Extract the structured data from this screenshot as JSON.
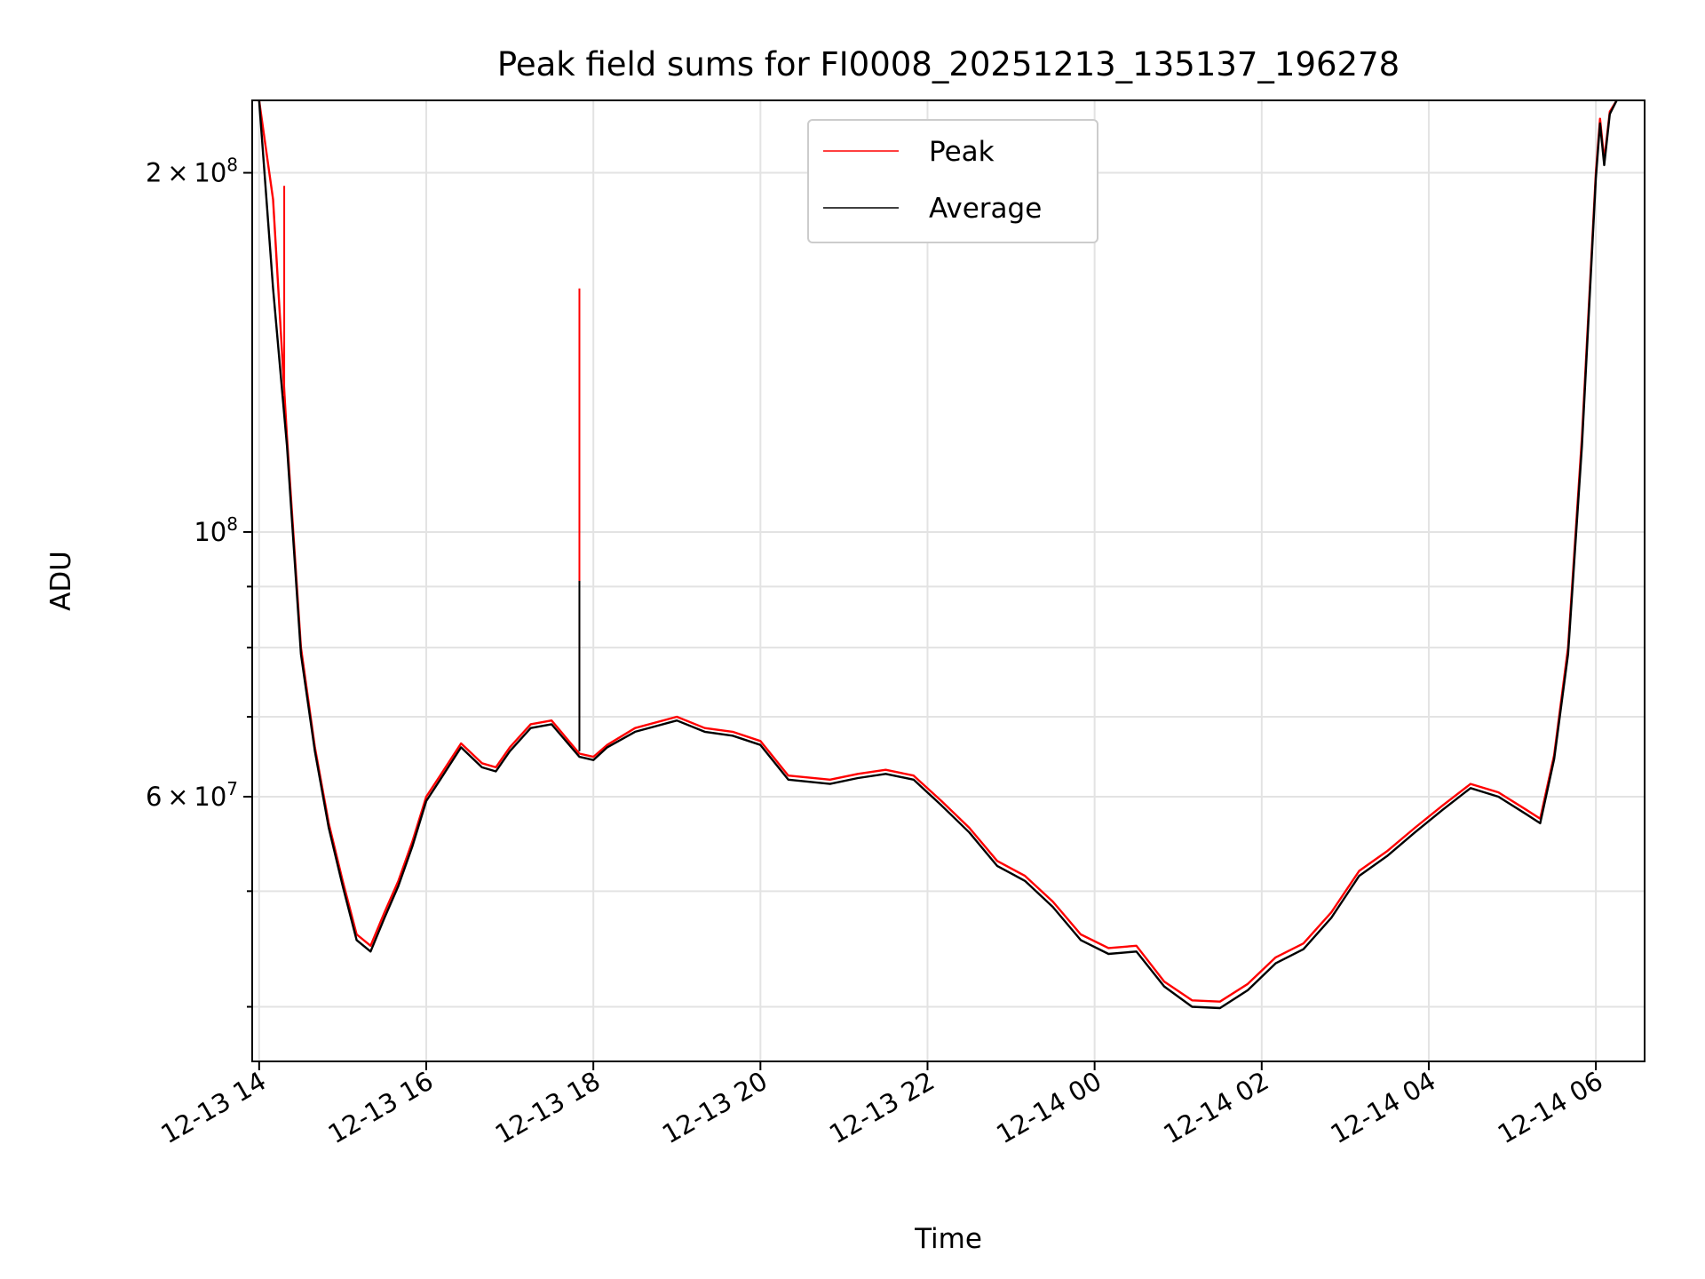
{
  "chart_data": {
    "type": "line",
    "title": "Peak field sums for FI0008_20251213_135137_196278",
    "xlabel": "Time",
    "ylabel": "ADU",
    "x_ticks": [
      "12-13 14",
      "12-13 16",
      "12-13 18",
      "12-13 20",
      "12-13 22",
      "12-14 00",
      "12-14 02",
      "12-14 04",
      "12-14 06"
    ],
    "y_scale": "log",
    "y_tick_labels": [
      {
        "value": 200000000,
        "mantissa": "2",
        "exponent": "8"
      },
      {
        "value": 100000000,
        "mantissa": "",
        "exponent": "8"
      },
      {
        "value": 60000000,
        "mantissa": "6",
        "exponent": "7"
      }
    ],
    "ylim": [
      36000000,
      230000000
    ],
    "xlim": [
      "2025-12-13 13:55",
      "2025-12-14 06:35"
    ],
    "grid": true,
    "legend_position": "upper center",
    "series": [
      {
        "name": "Peak",
        "color": "#ff0000",
        "x": [
          "2025-12-13 14:00",
          "2025-12-13 14:10",
          "2025-12-13 14:20",
          "2025-12-13 14:30",
          "2025-12-13 14:40",
          "2025-12-13 14:50",
          "2025-12-13 15:00",
          "2025-12-13 15:10",
          "2025-12-13 15:20",
          "2025-12-13 15:30",
          "2025-12-13 15:40",
          "2025-12-13 15:50",
          "2025-12-13 16:00",
          "2025-12-13 16:10",
          "2025-12-13 16:25",
          "2025-12-13 16:40",
          "2025-12-13 16:50",
          "2025-12-13 17:00",
          "2025-12-13 17:15",
          "2025-12-13 17:30",
          "2025-12-13 17:50",
          "2025-12-13 18:00",
          "2025-12-13 18:10",
          "2025-12-13 18:30",
          "2025-12-13 19:00",
          "2025-12-13 19:20",
          "2025-12-13 19:40",
          "2025-12-13 20:00",
          "2025-12-13 20:20",
          "2025-12-13 20:50",
          "2025-12-13 21:10",
          "2025-12-13 21:30",
          "2025-12-13 21:50",
          "2025-12-13 22:10",
          "2025-12-13 22:30",
          "2025-12-13 22:50",
          "2025-12-13 23:10",
          "2025-12-13 23:30",
          "2025-12-13 23:50",
          "2025-12-14 00:10",
          "2025-12-14 00:30",
          "2025-12-14 00:50",
          "2025-12-14 01:10",
          "2025-12-14 01:30",
          "2025-12-14 01:50",
          "2025-12-14 02:10",
          "2025-12-14 02:30",
          "2025-12-14 02:50",
          "2025-12-14 03:10",
          "2025-12-14 03:30",
          "2025-12-14 03:50",
          "2025-12-14 04:10",
          "2025-12-14 04:30",
          "2025-12-14 04:50",
          "2025-12-14 05:10",
          "2025-12-14 05:20",
          "2025-12-14 05:30",
          "2025-12-14 05:40",
          "2025-12-14 05:50",
          "2025-12-14 06:00",
          "2025-12-14 06:03",
          "2025-12-14 06:06",
          "2025-12-14 06:10",
          "2025-12-14 06:15"
        ],
        "y": [
          230000000,
          190000000,
          120000000,
          80000000,
          66000000,
          57000000,
          51000000,
          46000000,
          45000000,
          48000000,
          51000000,
          55000000,
          60000000,
          62500000,
          66500000,
          64000000,
          63500000,
          66000000,
          69000000,
          69500000,
          65200000,
          64800000,
          66300000,
          68500000,
          70000000,
          68500000,
          68000000,
          66800000,
          62500000,
          62000000,
          62700000,
          63200000,
          62500000,
          59500000,
          56500000,
          53000000,
          51500000,
          49000000,
          46000000,
          44800000,
          45000000,
          42000000,
          40500000,
          40400000,
          41800000,
          44000000,
          45200000,
          48000000,
          52000000,
          54000000,
          56500000,
          59000000,
          61500000,
          60500000,
          58500000,
          57500000,
          65000000,
          80000000,
          120000000,
          200000000,
          222000000,
          205000000,
          225000000,
          230000000
        ]
      },
      {
        "name": "Average",
        "color": "#000000",
        "x": [
          "2025-12-13 14:00",
          "2025-12-13 14:10",
          "2025-12-13 14:20",
          "2025-12-13 14:30",
          "2025-12-13 14:40",
          "2025-12-13 14:50",
          "2025-12-13 15:00",
          "2025-12-13 15:10",
          "2025-12-13 15:20",
          "2025-12-13 15:30",
          "2025-12-13 15:40",
          "2025-12-13 15:50",
          "2025-12-13 16:00",
          "2025-12-13 16:10",
          "2025-12-13 16:25",
          "2025-12-13 16:40",
          "2025-12-13 16:50",
          "2025-12-13 17:00",
          "2025-12-13 17:15",
          "2025-12-13 17:30",
          "2025-12-13 17:50",
          "2025-12-13 18:00",
          "2025-12-13 18:10",
          "2025-12-13 18:30",
          "2025-12-13 19:00",
          "2025-12-13 19:20",
          "2025-12-13 19:40",
          "2025-12-13 20:00",
          "2025-12-13 20:20",
          "2025-12-13 20:50",
          "2025-12-13 21:10",
          "2025-12-13 21:30",
          "2025-12-13 21:50",
          "2025-12-13 22:10",
          "2025-12-13 22:30",
          "2025-12-13 22:50",
          "2025-12-13 23:10",
          "2025-12-13 23:30",
          "2025-12-13 23:50",
          "2025-12-14 00:10",
          "2025-12-14 00:30",
          "2025-12-14 00:50",
          "2025-12-14 01:10",
          "2025-12-14 01:30",
          "2025-12-14 01:50",
          "2025-12-14 02:10",
          "2025-12-14 02:30",
          "2025-12-14 02:50",
          "2025-12-14 03:10",
          "2025-12-14 03:30",
          "2025-12-14 03:50",
          "2025-12-14 04:10",
          "2025-12-14 04:30",
          "2025-12-14 04:50",
          "2025-12-14 05:10",
          "2025-12-14 05:20",
          "2025-12-14 05:30",
          "2025-12-14 05:40",
          "2025-12-14 05:50",
          "2025-12-14 06:00",
          "2025-12-14 06:03",
          "2025-12-14 06:06",
          "2025-12-14 06:10",
          "2025-12-14 06:15"
        ],
        "y": [
          230000000,
          160000000,
          118000000,
          79000000,
          65500000,
          56500000,
          50500000,
          45500000,
          44500000,
          47500000,
          50500000,
          54500000,
          59500000,
          62000000,
          66000000,
          63500000,
          63000000,
          65500000,
          68500000,
          69000000,
          64800000,
          64400000,
          66000000,
          68000000,
          69500000,
          68000000,
          67500000,
          66300000,
          62000000,
          61500000,
          62200000,
          62700000,
          62000000,
          59000000,
          56000000,
          52500000,
          51000000,
          48500000,
          45500000,
          44300000,
          44500000,
          41600000,
          40000000,
          39900000,
          41300000,
          43500000,
          44700000,
          47500000,
          51500000,
          53500000,
          56000000,
          58500000,
          61000000,
          60000000,
          58000000,
          57000000,
          64500000,
          79000000,
          118000000,
          198000000,
          220000000,
          203000000,
          224000000,
          230000000
        ]
      }
    ],
    "spikes": [
      {
        "series": "Peak",
        "x": "2025-12-13 17:50",
        "y": 160000000,
        "base": 66000000
      },
      {
        "series": "Average",
        "x": "2025-12-13 17:50",
        "y": 91000000,
        "base": 65500000
      },
      {
        "series": "Peak",
        "x": "2025-12-13 14:18",
        "y": 195000000,
        "base": 130000000
      }
    ]
  }
}
